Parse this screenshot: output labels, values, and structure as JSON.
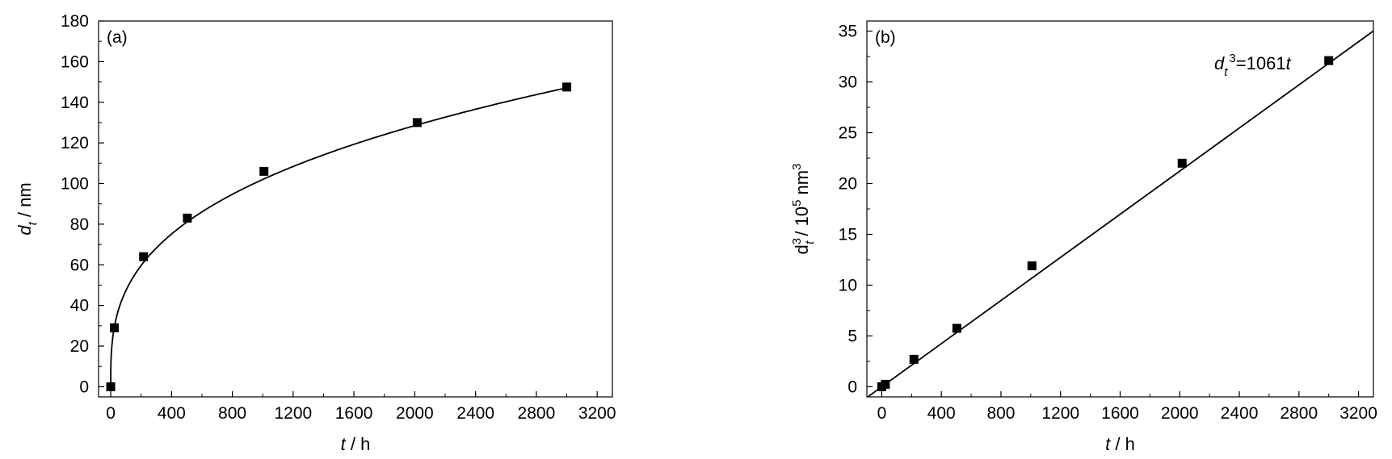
{
  "chart_data": [
    {
      "type": "scatter",
      "panel_label": "(a)",
      "xlabel": {
        "var": "t",
        "rest": " / h"
      },
      "ylabel": {
        "var": "d",
        "sub": "t",
        "rest": " / nm"
      },
      "xlim": [
        -80,
        3300
      ],
      "ylim": [
        -5,
        180
      ],
      "xticks": [
        0,
        400,
        800,
        1200,
        1600,
        2000,
        2400,
        2800,
        3200
      ],
      "yticks": [
        0,
        20,
        40,
        60,
        80,
        100,
        120,
        140,
        160,
        180
      ],
      "points": [
        {
          "x": 0,
          "y": 0
        },
        {
          "x": 24,
          "y": 29
        },
        {
          "x": 216,
          "y": 64
        },
        {
          "x": 504,
          "y": 83
        },
        {
          "x": 1008,
          "y": 106
        },
        {
          "x": 2016,
          "y": 130
        },
        {
          "x": 3000,
          "y": 147.5
        }
      ],
      "fit": {
        "form": "cube_root",
        "k": 1061
      }
    },
    {
      "type": "scatter",
      "panel_label": "(b)",
      "xlabel": {
        "var": "t",
        "rest": " / h"
      },
      "ylabel": {
        "var": "d",
        "sup": "3",
        "sub": "t",
        "rest": " / 10",
        "unit_sup": "5",
        "unit": " nm",
        "unit_sup2": "3"
      },
      "xlim": [
        -100,
        3300
      ],
      "ylim": [
        -1,
        36
      ],
      "xticks": [
        0,
        400,
        800,
        1200,
        1600,
        2000,
        2400,
        2800,
        3200
      ],
      "yticks": [
        0,
        5,
        10,
        15,
        20,
        25,
        30,
        35
      ],
      "points": [
        {
          "x": 0,
          "y": 0
        },
        {
          "x": 24,
          "y": 0.24
        },
        {
          "x": 216,
          "y": 2.7
        },
        {
          "x": 504,
          "y": 5.75
        },
        {
          "x": 1008,
          "y": 11.9
        },
        {
          "x": 2016,
          "y": 22.0
        },
        {
          "x": 3000,
          "y": 32.1
        }
      ],
      "fit": {
        "form": "linear",
        "slope_per_h": 0.01061
      },
      "annotation": {
        "var": "d",
        "sub": "t",
        "sup": "3",
        "rest": "=1061",
        "var2": "t"
      }
    }
  ]
}
